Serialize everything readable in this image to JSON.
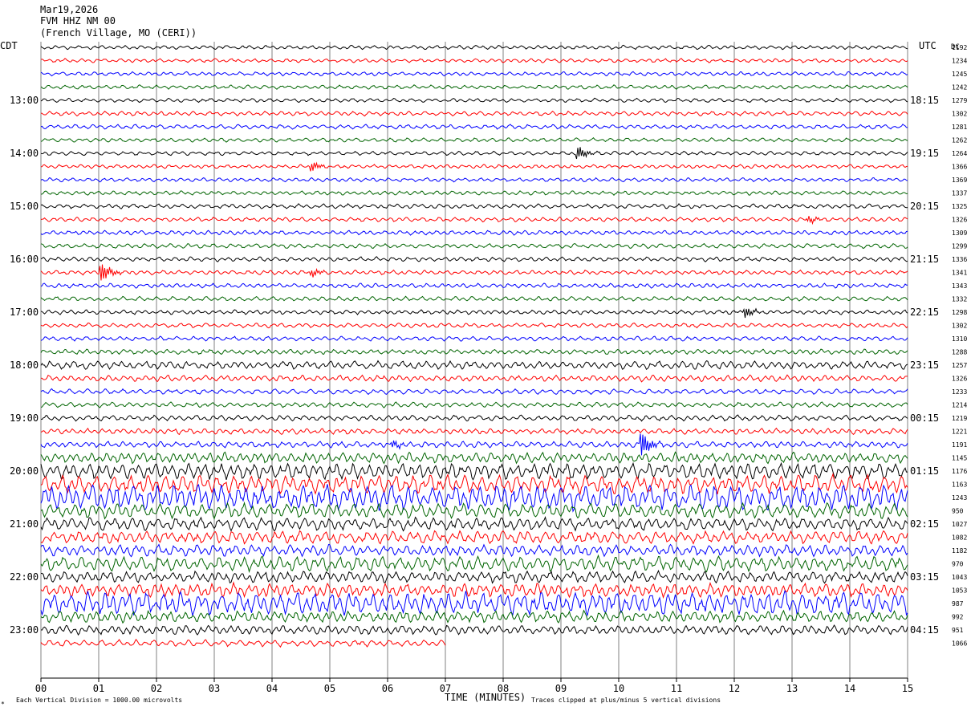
{
  "header": {
    "date": "Mar19,2026",
    "station": "FVM HHZ NM 00",
    "location": "(French Village, MO (CERI))"
  },
  "left_label": "CDT",
  "right_label": "UTC",
  "dc_label": "DC",
  "footer": {
    "scale_note": "Each Vertical Division = 1000.00 microvolts",
    "xlabel": "TIME (MINUTES)",
    "clip_note": "Traces clipped at plus/minus 5 vertical divisions",
    "corner_mark": "*"
  },
  "colors": {
    "trace_cycle": [
      "#000000",
      "#ff0000",
      "#0000ff",
      "#006400"
    ],
    "grid": "#808080",
    "frame": "#000000"
  },
  "chart_data": {
    "type": "line",
    "title": "FVM HHZ NM 00",
    "xlabel": "TIME (MINUTES)",
    "xlim": [
      0,
      15
    ],
    "x_ticks": [
      "00",
      "01",
      "02",
      "03",
      "04",
      "05",
      "06",
      "07",
      "08",
      "09",
      "10",
      "11",
      "12",
      "13",
      "14",
      "15"
    ],
    "minutes_per_line": 15,
    "lines_per_hour": 4,
    "left_hour_labels": [
      "13:00",
      "14:00",
      "15:00",
      "16:00",
      "17:00",
      "18:00",
      "19:00",
      "20:00",
      "21:00",
      "22:00",
      "23:00"
    ],
    "right_hour_labels": [
      "18:15",
      "19:15",
      "20:15",
      "21:15",
      "22:15",
      "23:15",
      "00:15",
      "01:15",
      "02:15",
      "03:15",
      "04:15"
    ],
    "first_labeled_line": 4,
    "last_line_end_minute": 7.0,
    "dc_offsets": [
      "1192",
      "1234",
      "1245",
      "1242",
      "1279",
      "1302",
      "1281",
      "1262",
      "1264",
      "1366",
      "1369",
      "1337",
      "1325",
      "1326",
      "1309",
      "1299",
      "1336",
      "1341",
      "1343",
      "1332",
      "1298",
      "1302",
      "1310",
      "1288",
      "1257",
      "1326",
      "1233",
      "1214",
      "1219",
      "1221",
      "1191",
      "1145",
      "1176",
      "1163",
      "1243",
      "950",
      "1027",
      "1082",
      "1182",
      "970",
      "1043",
      "1053",
      "987",
      "992",
      "951",
      "1066"
    ],
    "trace_amplitude_levels": [
      0.35,
      0.35,
      0.35,
      0.35,
      0.35,
      0.4,
      0.4,
      0.35,
      0.35,
      0.35,
      0.35,
      0.35,
      0.4,
      0.4,
      0.4,
      0.4,
      0.4,
      0.4,
      0.4,
      0.4,
      0.4,
      0.4,
      0.4,
      0.45,
      0.7,
      0.55,
      0.45,
      0.45,
      0.5,
      0.5,
      0.55,
      0.9,
      1.4,
      1.6,
      2.2,
      1.3,
      1.1,
      1.1,
      1.0,
      1.3,
      1.0,
      1.2,
      2.0,
      1.0,
      0.8,
      0.6
    ],
    "events": [
      {
        "line": 8,
        "minute": 9.3,
        "amplitude": 1.2
      },
      {
        "line": 9,
        "minute": 4.7,
        "amplitude": 0.8
      },
      {
        "line": 12,
        "minute": 14.8,
        "amplitude": 0.7
      },
      {
        "line": 13,
        "minute": 13.3,
        "amplitude": 0.7
      },
      {
        "line": 17,
        "minute": 1.05,
        "amplitude": 2.2
      },
      {
        "line": 17,
        "minute": 4.7,
        "amplitude": 0.6
      },
      {
        "line": 20,
        "minute": 12.2,
        "amplitude": 0.9
      },
      {
        "line": 30,
        "minute": 6.1,
        "amplitude": 1.4
      },
      {
        "line": 30,
        "minute": 10.4,
        "amplitude": 2.0
      }
    ]
  }
}
